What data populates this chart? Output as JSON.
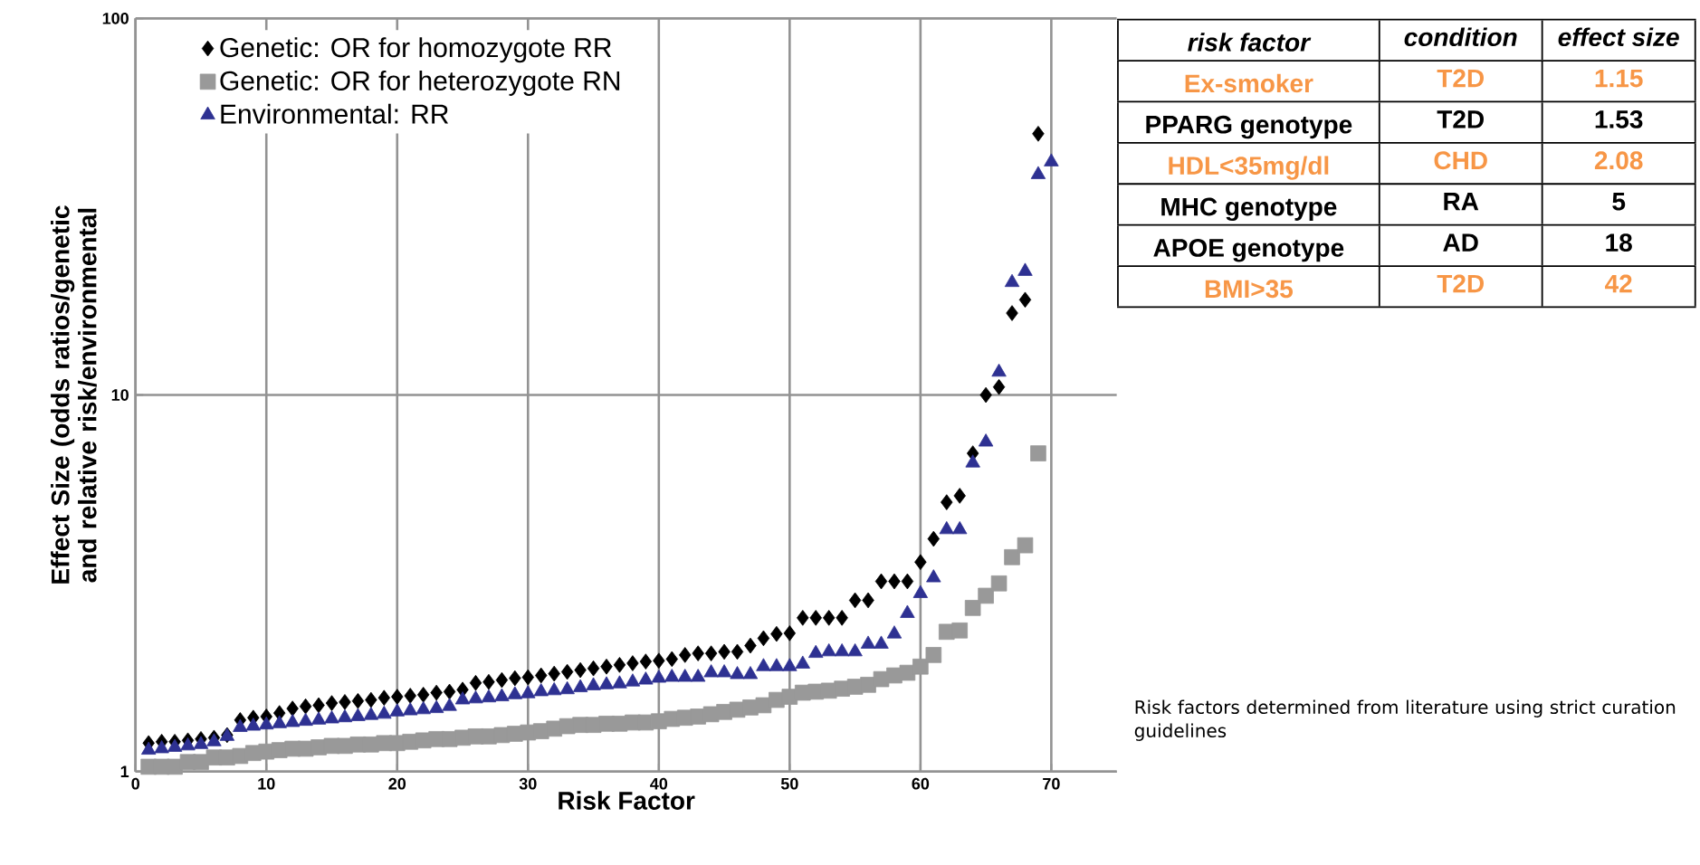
{
  "chart_data": [
    {
      "type": "scatter",
      "xlabel": "Risk Factor",
      "ylabel": "Effect Size (odds ratios/genetic and relative risk/environmental",
      "log": "y",
      "grid": true,
      "legend": "top left",
      "xlim": [
        0,
        75
      ],
      "ylim": [
        1,
        100
      ],
      "xticks": [
        0,
        10,
        20,
        30,
        40,
        50,
        60,
        70
      ],
      "yticks": [
        1,
        10,
        100
      ],
      "annotations": [
        "Risk factors determined from literature using strict curation guidelines"
      ],
      "series": [
        {
          "name": "Genetic: OR for homozygote RR",
          "color": "#000000",
          "marker": "diamond",
          "x": [
            1,
            2,
            3,
            4,
            5,
            6,
            7,
            8,
            9,
            10,
            11,
            12,
            13,
            14,
            15,
            16,
            17,
            18,
            19,
            20,
            21,
            22,
            23,
            24,
            25,
            26,
            27,
            28,
            29,
            30,
            31,
            32,
            33,
            34,
            35,
            36,
            37,
            38,
            39,
            40,
            41,
            42,
            43,
            44,
            45,
            46,
            47,
            48,
            49,
            50,
            51,
            52,
            53,
            54,
            55,
            56,
            57,
            58,
            59,
            60,
            61,
            62,
            63,
            64,
            65,
            66,
            67,
            68,
            69
          ],
          "values": [
            1.19,
            1.2,
            1.2,
            1.21,
            1.22,
            1.23,
            1.25,
            1.37,
            1.39,
            1.4,
            1.43,
            1.47,
            1.49,
            1.5,
            1.52,
            1.53,
            1.54,
            1.55,
            1.57,
            1.58,
            1.59,
            1.6,
            1.62,
            1.63,
            1.65,
            1.72,
            1.73,
            1.75,
            1.77,
            1.78,
            1.8,
            1.82,
            1.84,
            1.86,
            1.88,
            1.9,
            1.92,
            1.94,
            1.96,
            1.97,
            1.99,
            2.04,
            2.06,
            2.06,
            2.08,
            2.08,
            2.16,
            2.26,
            2.32,
            2.33,
            2.56,
            2.56,
            2.56,
            2.56,
            2.85,
            2.85,
            3.2,
            3.2,
            3.2,
            3.6,
            4.15,
            5.19,
            5.4,
            7.0,
            10,
            10.5,
            16.5,
            17.9,
            49.4
          ]
        },
        {
          "name": "Genetic: OR for heterozygote RN",
          "color": "#999999",
          "marker": "square",
          "x": [
            1,
            2,
            3,
            4,
            5,
            6,
            7,
            8,
            9,
            10,
            11,
            12,
            13,
            14,
            15,
            16,
            17,
            18,
            19,
            20,
            21,
            22,
            23,
            24,
            25,
            26,
            27,
            28,
            29,
            30,
            31,
            32,
            33,
            34,
            35,
            36,
            37,
            38,
            39,
            40,
            41,
            42,
            43,
            44,
            45,
            46,
            47,
            48,
            49,
            50,
            51,
            52,
            53,
            54,
            55,
            56,
            57,
            58,
            59,
            60,
            61,
            62,
            63,
            64,
            65,
            66,
            67,
            68,
            69
          ],
          "values": [
            1.03,
            1.03,
            1.03,
            1.06,
            1.06,
            1.09,
            1.09,
            1.1,
            1.12,
            1.13,
            1.14,
            1.15,
            1.15,
            1.16,
            1.17,
            1.17,
            1.18,
            1.18,
            1.19,
            1.19,
            1.2,
            1.21,
            1.22,
            1.22,
            1.23,
            1.24,
            1.24,
            1.25,
            1.26,
            1.27,
            1.28,
            1.3,
            1.32,
            1.33,
            1.33,
            1.34,
            1.34,
            1.35,
            1.35,
            1.36,
            1.38,
            1.39,
            1.4,
            1.42,
            1.44,
            1.46,
            1.48,
            1.5,
            1.55,
            1.58,
            1.62,
            1.63,
            1.64,
            1.66,
            1.68,
            1.7,
            1.76,
            1.8,
            1.83,
            1.9,
            2.04,
            2.35,
            2.37,
            2.72,
            2.93,
            3.16,
            3.71,
            3.99,
            7.0
          ]
        },
        {
          "name": "Environmental: RR",
          "color": "#2e3192",
          "marker": "triangle",
          "x": [
            1,
            2,
            3,
            4,
            5,
            6,
            7,
            8,
            9,
            10,
            11,
            12,
            13,
            14,
            15,
            16,
            17,
            18,
            19,
            20,
            21,
            22,
            23,
            24,
            25,
            26,
            27,
            28,
            29,
            30,
            31,
            32,
            33,
            34,
            35,
            36,
            37,
            38,
            39,
            40,
            41,
            42,
            43,
            44,
            45,
            46,
            47,
            48,
            49,
            50,
            51,
            52,
            53,
            54,
            55,
            56,
            57,
            58,
            59,
            60,
            61,
            62,
            63,
            64,
            65,
            66,
            67,
            68,
            69,
            70
          ],
          "values": [
            1.14,
            1.15,
            1.16,
            1.17,
            1.18,
            1.2,
            1.24,
            1.31,
            1.32,
            1.33,
            1.34,
            1.35,
            1.36,
            1.37,
            1.38,
            1.39,
            1.4,
            1.41,
            1.42,
            1.44,
            1.45,
            1.46,
            1.47,
            1.49,
            1.55,
            1.56,
            1.57,
            1.58,
            1.6,
            1.61,
            1.63,
            1.64,
            1.65,
            1.67,
            1.69,
            1.7,
            1.71,
            1.73,
            1.75,
            1.77,
            1.78,
            1.78,
            1.78,
            1.83,
            1.83,
            1.81,
            1.81,
            1.9,
            1.9,
            1.9,
            1.93,
            2.06,
            2.08,
            2.08,
            2.08,
            2.18,
            2.18,
            2.32,
            2.63,
            2.97,
            3.27,
            4.39,
            4.39,
            6.6,
            7.5,
            11.5,
            19.9,
            21.3,
            38.5,
            41.6
          ]
        }
      ]
    },
    {
      "type": "other",
      "annotations": [
        "risk factor",
        "condition",
        "effect size",
        "Ex-smoker",
        "T2D",
        "1.15",
        "PPARG genotype",
        "T2D",
        "1.53",
        "HDL<35mg/dl",
        "CHD",
        "2.08",
        "MHC genotype",
        "RA",
        "5",
        "APOE genotype",
        "AD",
        "18",
        "BMI>35",
        "T2D",
        "42"
      ]
    }
  ]
}
